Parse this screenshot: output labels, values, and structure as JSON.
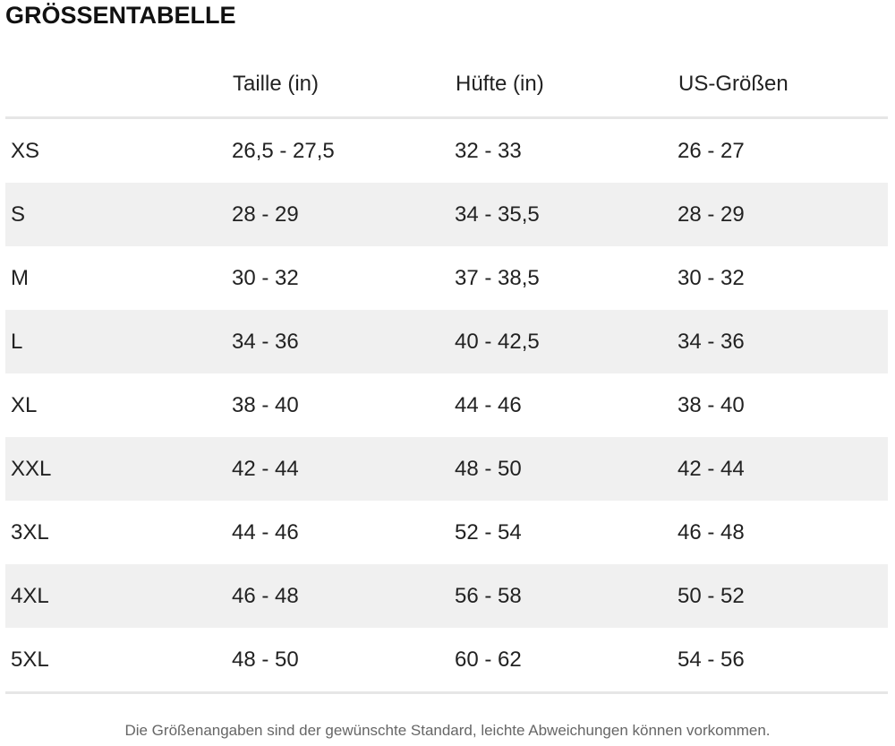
{
  "title": "GRÖSSENTABELLE",
  "table": {
    "header": [
      "",
      "Taille (in)",
      "Hüfte (in)",
      "US-Größen"
    ],
    "rows": [
      [
        "XS",
        "26,5 - 27,5",
        "32 - 33",
        "26 - 27"
      ],
      [
        "S",
        "28 - 29",
        "34 - 35,5",
        "28 - 29"
      ],
      [
        "M",
        "30 - 32",
        "37 - 38,5",
        "30 - 32"
      ],
      [
        "L",
        "34 - 36",
        "40 - 42,5",
        "34 - 36"
      ],
      [
        "XL",
        "38 - 40",
        "44 - 46",
        "38 - 40"
      ],
      [
        "XXL",
        "42 - 44",
        "48 - 50",
        "42 - 44"
      ],
      [
        "3XL",
        "44 - 46",
        "52 - 54",
        "46 - 48"
      ],
      [
        "4XL",
        "46 - 48",
        "56 - 58",
        "50 - 52"
      ],
      [
        "5XL",
        "48 - 50",
        "60 - 62",
        "54 - 56"
      ]
    ]
  },
  "footnote": "Die Größenangaben sind der gewünschte Standard, leichte Abweichungen können vorkommen."
}
